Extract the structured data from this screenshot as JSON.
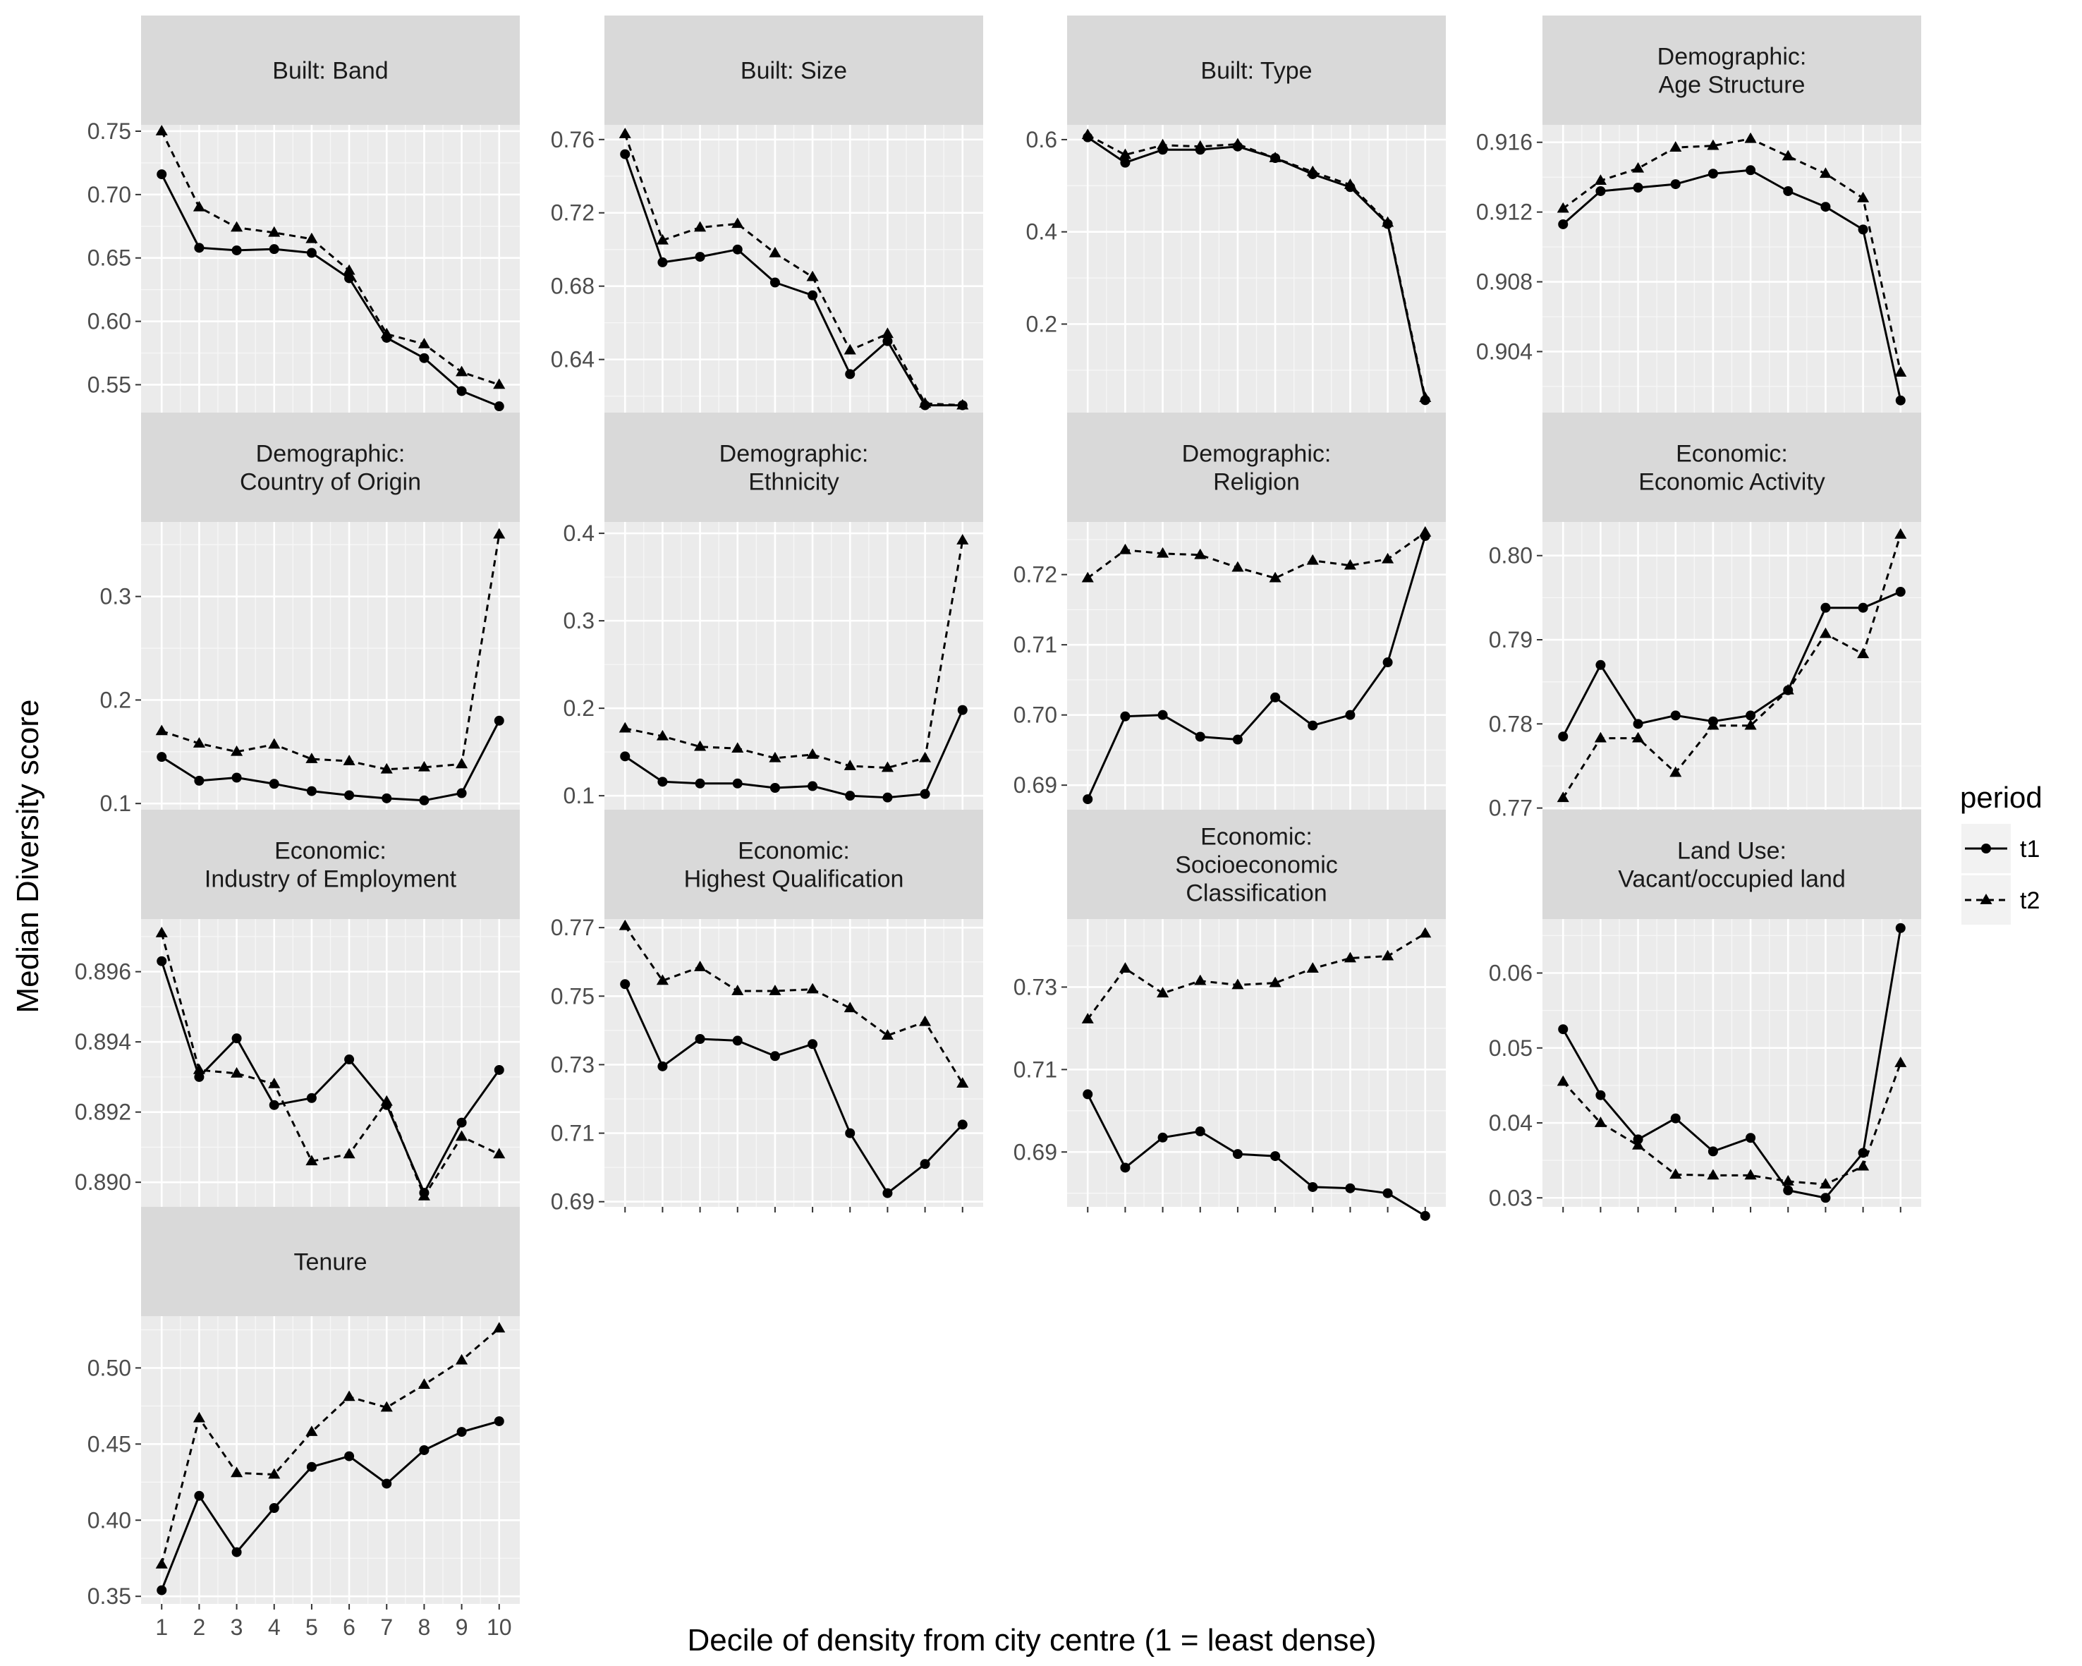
{
  "chart_data": {
    "type": "line",
    "xlabel": "Decile of density from city centre (1 = least dense)",
    "ylabel": "Median Diversity score",
    "x": [
      1,
      2,
      3,
      4,
      5,
      6,
      7,
      8,
      9,
      10
    ],
    "x_tick_labels": [
      "1",
      "2",
      "3",
      "4",
      "5",
      "6",
      "7",
      "8",
      "9",
      "10"
    ],
    "legend": {
      "title": "period",
      "position": "right",
      "entries": [
        {
          "label": "t1",
          "linetype": "solid",
          "marker": "circle"
        },
        {
          "label": "t2",
          "linetype": "dashed",
          "marker": "triangle"
        }
      ]
    },
    "grid": true,
    "facets": [
      {
        "title": [
          "Built: Band"
        ],
        "ylim": [
          0.528,
          0.755
        ],
        "yticks": [
          0.55,
          0.6,
          0.65,
          0.7,
          0.75
        ],
        "ytick_labels": [
          "0.55",
          "0.60",
          "0.65",
          "0.70",
          "0.75"
        ],
        "series": [
          {
            "name": "t1",
            "values": [
              0.716,
              0.658,
              0.656,
              0.657,
              0.654,
              0.634,
              0.587,
              0.571,
              0.545,
              0.533
            ]
          },
          {
            "name": "t2",
            "values": [
              0.75,
              0.69,
              0.674,
              0.67,
              0.665,
              0.64,
              0.59,
              0.582,
              0.56,
              0.55
            ]
          }
        ]
      },
      {
        "title": [
          "Built: Size"
        ],
        "ylim": [
          0.611,
          0.768
        ],
        "yticks": [
          0.64,
          0.68,
          0.72,
          0.76
        ],
        "ytick_labels": [
          "0.64",
          "0.68",
          "0.72",
          "0.76"
        ],
        "series": [
          {
            "name": "t1",
            "values": [
              0.752,
              0.693,
              0.696,
              0.7,
              0.682,
              0.675,
              0.632,
              0.65,
              0.615,
              0.615
            ]
          },
          {
            "name": "t2",
            "values": [
              0.763,
              0.705,
              0.712,
              0.714,
              0.698,
              0.685,
              0.645,
              0.654,
              0.616,
              0.615
            ]
          }
        ]
      },
      {
        "title": [
          "Built: Type"
        ],
        "ylim": [
          0.008,
          0.632
        ],
        "yticks": [
          0.2,
          0.4,
          0.6
        ],
        "ytick_labels": [
          "0.2",
          "0.4",
          "0.6"
        ],
        "series": [
          {
            "name": "t1",
            "values": [
              0.605,
              0.55,
              0.578,
              0.578,
              0.585,
              0.56,
              0.525,
              0.497,
              0.417,
              0.035
            ]
          },
          {
            "name": "t2",
            "values": [
              0.61,
              0.567,
              0.588,
              0.585,
              0.59,
              0.56,
              0.53,
              0.502,
              0.42,
              0.04
            ]
          }
        ]
      },
      {
        "title": [
          "Demographic:",
          "Age Structure"
        ],
        "ylim": [
          0.9005,
          0.917
        ],
        "yticks": [
          0.904,
          0.908,
          0.912,
          0.916
        ],
        "ytick_labels": [
          "0.904",
          "0.908",
          "0.912",
          "0.916"
        ],
        "series": [
          {
            "name": "t1",
            "values": [
              0.9113,
              0.9132,
              0.9134,
              0.9136,
              0.9142,
              0.9144,
              0.9132,
              0.9123,
              0.911,
              0.9012
            ]
          },
          {
            "name": "t2",
            "values": [
              0.9122,
              0.9138,
              0.9145,
              0.9157,
              0.9158,
              0.9162,
              0.9152,
              0.9142,
              0.9128,
              0.9028
            ]
          }
        ]
      },
      {
        "title": [
          "Demographic:",
          "Country of Origin"
        ],
        "ylim": [
          0.094,
          0.372
        ],
        "yticks": [
          0.1,
          0.2,
          0.3
        ],
        "ytick_labels": [
          "0.1",
          "0.2",
          "0.3"
        ],
        "series": [
          {
            "name": "t1",
            "values": [
              0.145,
              0.122,
              0.125,
              0.119,
              0.112,
              0.108,
              0.105,
              0.103,
              0.11,
              0.18
            ]
          },
          {
            "name": "t2",
            "values": [
              0.17,
              0.158,
              0.15,
              0.157,
              0.143,
              0.141,
              0.133,
              0.135,
              0.138,
              0.36
            ]
          }
        ]
      },
      {
        "title": [
          "Demographic:",
          "Ethnicity"
        ],
        "ylim": [
          0.084,
          0.413
        ],
        "yticks": [
          0.1,
          0.2,
          0.3,
          0.4
        ],
        "ytick_labels": [
          "0.1",
          "0.2",
          "0.3",
          "0.4"
        ],
        "series": [
          {
            "name": "t1",
            "values": [
              0.145,
              0.116,
              0.114,
              0.114,
              0.109,
              0.111,
              0.1,
              0.098,
              0.102,
              0.198
            ]
          },
          {
            "name": "t2",
            "values": [
              0.177,
              0.168,
              0.156,
              0.154,
              0.143,
              0.147,
              0.134,
              0.132,
              0.143,
              0.392
            ]
          }
        ]
      },
      {
        "title": [
          "Demographic:",
          "Religion"
        ],
        "ylim": [
          0.6865,
          0.7275
        ],
        "yticks": [
          0.69,
          0.7,
          0.71,
          0.72
        ],
        "ytick_labels": [
          "0.69",
          "0.70",
          "0.71",
          "0.72"
        ],
        "series": [
          {
            "name": "t1",
            "values": [
              0.688,
              0.6998,
              0.7,
              0.6969,
              0.6965,
              0.7025,
              0.6985,
              0.7,
              0.7075,
              0.7255
            ]
          },
          {
            "name": "t2",
            "values": [
              0.7195,
              0.7235,
              0.723,
              0.7228,
              0.721,
              0.7195,
              0.722,
              0.7213,
              0.7222,
              0.726
            ]
          }
        ]
      },
      {
        "title": [
          "Economic:",
          "Economic Activity"
        ],
        "ylim": [
          0.7698,
          0.804
        ],
        "yticks": [
          0.77,
          0.78,
          0.79,
          0.8
        ],
        "ytick_labels": [
          "0.77",
          "0.78",
          "0.79",
          "0.80"
        ],
        "series": [
          {
            "name": "t1",
            "values": [
              0.7785,
              0.787,
              0.78,
              0.781,
              0.7803,
              0.781,
              0.784,
              0.7938,
              0.7938,
              0.7957
            ]
          },
          {
            "name": "t2",
            "values": [
              0.7712,
              0.7783,
              0.7783,
              0.7742,
              0.7798,
              0.7798,
              0.784,
              0.7907,
              0.7883,
              0.8025
            ]
          }
        ]
      },
      {
        "title": [
          "Economic:",
          "Industry of Employment"
        ],
        "ylim": [
          0.8893,
          0.8975
        ],
        "yticks": [
          0.89,
          0.892,
          0.894,
          0.896
        ],
        "ytick_labels": [
          "0.890",
          "0.892",
          "0.894",
          "0.896"
        ],
        "series": [
          {
            "name": "t1",
            "values": [
              0.8963,
              0.893,
              0.8941,
              0.8922,
              0.8924,
              0.8935,
              0.8922,
              0.8897,
              0.8917,
              0.8932
            ]
          },
          {
            "name": "t2",
            "values": [
              0.8971,
              0.8932,
              0.8931,
              0.8928,
              0.8906,
              0.8908,
              0.8923,
              0.8896,
              0.8913,
              0.8908
            ]
          }
        ]
      },
      {
        "title": [
          "Economic:",
          "Highest Qualification"
        ],
        "ylim": [
          0.6885,
          0.7725
        ],
        "yticks": [
          0.69,
          0.71,
          0.73,
          0.75,
          0.77
        ],
        "ytick_labels": [
          "0.69",
          "0.71",
          "0.73",
          "0.75",
          "0.77"
        ],
        "series": [
          {
            "name": "t1",
            "values": [
              0.7535,
              0.7295,
              0.7375,
              0.737,
              0.7325,
              0.736,
              0.71,
              0.6925,
              0.701,
              0.7125
            ]
          },
          {
            "name": "t2",
            "values": [
              0.7705,
              0.7545,
              0.7585,
              0.7515,
              0.7515,
              0.752,
              0.7465,
              0.7385,
              0.7425,
              0.7245
            ]
          }
        ]
      },
      {
        "title": [
          "Economic:",
          "Socioeconomic",
          "Classification"
        ],
        "ylim": [
          0.6767,
          0.7465
        ],
        "yticks": [
          0.69,
          0.71,
          0.73
        ],
        "ytick_labels": [
          "0.69",
          "0.71",
          "0.73"
        ],
        "series": [
          {
            "name": "t1",
            "values": [
              0.704,
              0.6862,
              0.6935,
              0.695,
              0.6895,
              0.689,
              0.6815,
              0.6812,
              0.68,
              0.6745
            ]
          },
          {
            "name": "t2",
            "values": [
              0.7222,
              0.7345,
              0.7285,
              0.7315,
              0.7305,
              0.731,
              0.7345,
              0.737,
              0.7375,
              0.743
            ]
          }
        ]
      },
      {
        "title": [
          "Land Use:",
          "Vacant/occupied land"
        ],
        "ylim": [
          0.0288,
          0.0672
        ],
        "yticks": [
          0.03,
          0.04,
          0.05,
          0.06
        ],
        "ytick_labels": [
          "0.03",
          "0.04",
          "0.05",
          "0.06"
        ],
        "series": [
          {
            "name": "t1",
            "values": [
              0.0525,
              0.0437,
              0.0378,
              0.0406,
              0.0362,
              0.038,
              0.031,
              0.03,
              0.036,
              0.066
            ]
          },
          {
            "name": "t2",
            "values": [
              0.0455,
              0.04,
              0.037,
              0.0331,
              0.033,
              0.033,
              0.0322,
              0.0318,
              0.0342,
              0.048
            ]
          }
        ]
      },
      {
        "title": [
          "Tenure"
        ],
        "ylim": [
          0.345,
          0.534
        ],
        "yticks": [
          0.35,
          0.4,
          0.45,
          0.5
        ],
        "ytick_labels": [
          "0.35",
          "0.40",
          "0.45",
          "0.50"
        ],
        "series": [
          {
            "name": "t1",
            "values": [
              0.354,
              0.416,
              0.379,
              0.408,
              0.435,
              0.442,
              0.424,
              0.446,
              0.458,
              0.465
            ]
          },
          {
            "name": "t2",
            "values": [
              0.371,
              0.467,
              0.431,
              0.43,
              0.458,
              0.481,
              0.474,
              0.489,
              0.505,
              0.526
            ]
          }
        ]
      }
    ]
  }
}
